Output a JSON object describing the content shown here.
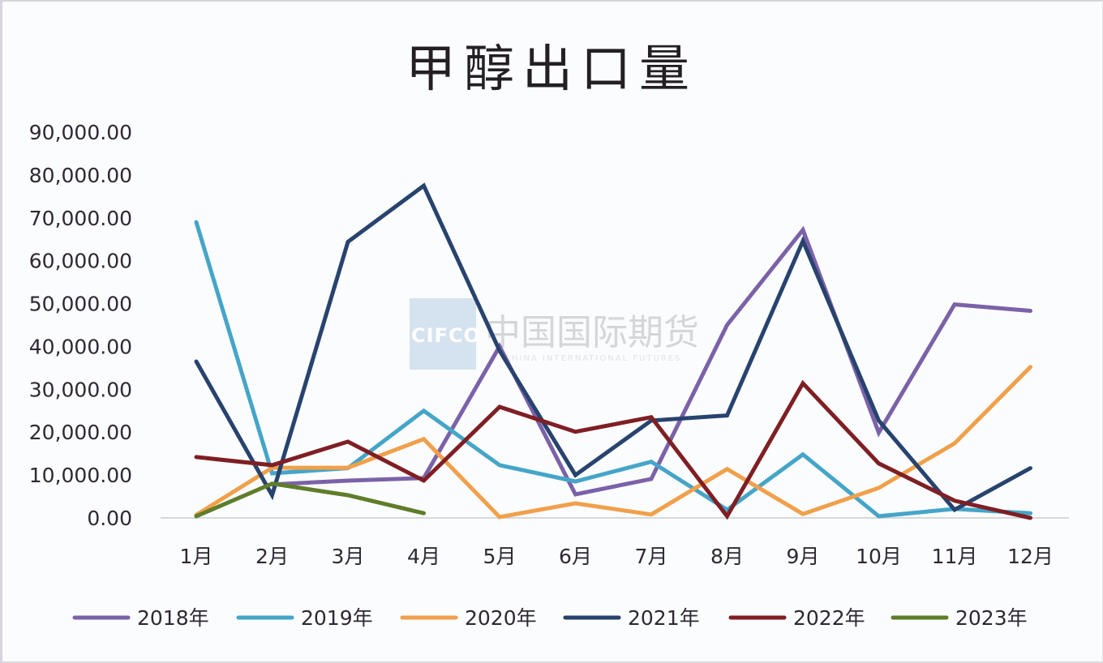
{
  "chart_data": {
    "type": "line",
    "title": "甲醇出口量",
    "xlabel": "",
    "ylabel": "",
    "ylim": [
      0,
      90000
    ],
    "yticks": [
      "0.00",
      "10,000.00",
      "20,000.00",
      "30,000.00",
      "40,000.00",
      "50,000.00",
      "60,000.00",
      "70,000.00",
      "80,000.00",
      "90,000.00"
    ],
    "grid": false,
    "legend_position": "bottom",
    "categories": [
      "1月",
      "2月",
      "3月",
      "4月",
      "5月",
      "6月",
      "7月",
      "8月",
      "9月",
      "10月",
      "11月",
      "12月"
    ],
    "series": [
      {
        "name": "2018年",
        "color": "#7b62a8",
        "values": [
          null,
          7800,
          8700,
          9300,
          40000,
          5500,
          9100,
          45000,
          67200,
          19900,
          49800,
          48300
        ]
      },
      {
        "name": "2019年",
        "color": "#45a5c8",
        "values": [
          69000,
          10400,
          11600,
          25000,
          12300,
          8500,
          13100,
          1900,
          14800,
          400,
          2100,
          1100
        ]
      },
      {
        "name": "2020年",
        "color": "#f0a04b",
        "values": [
          700,
          11700,
          11700,
          18400,
          200,
          3400,
          800,
          11400,
          900,
          7000,
          17400,
          35200
        ]
      },
      {
        "name": "2021年",
        "color": "#27436e",
        "values": [
          36500,
          5300,
          64400,
          77500,
          39000,
          10000,
          22700,
          23900,
          64600,
          22700,
          1900,
          11600
        ]
      },
      {
        "name": "2022年",
        "color": "#7f1f24",
        "values": [
          14200,
          12300,
          17800,
          8700,
          25900,
          20100,
          23500,
          400,
          31400,
          12700,
          4000,
          0
        ]
      },
      {
        "name": "2023年",
        "color": "#5f7d2a",
        "values": [
          400,
          8000,
          5300,
          1100,
          null,
          null,
          null,
          null,
          null,
          null,
          null,
          null
        ]
      }
    ]
  },
  "watermark": {
    "logo_text": "CIFCO",
    "name_cn": "中国国际期货",
    "name_en": "CHINA INTERNATIONAL FUTURES"
  }
}
